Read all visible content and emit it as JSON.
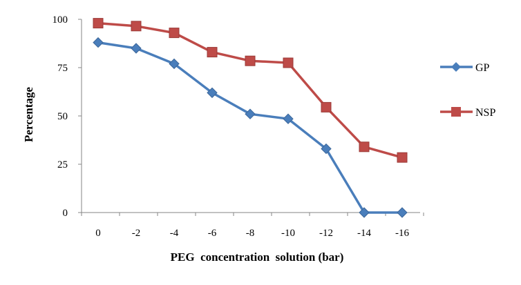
{
  "chart_data": {
    "type": "line",
    "title": "",
    "xlabel": "PEG  concentration  solution (bar)",
    "ylabel": "Percentage",
    "categories": [
      "0",
      "-2",
      "-4",
      "-6",
      "-8",
      "-10",
      "-12",
      "-14",
      "-16"
    ],
    "ylim": [
      0,
      100
    ],
    "yticks": [
      "0",
      "25",
      "50",
      "75",
      "100"
    ],
    "grid": false,
    "legend": "right",
    "series": [
      {
        "name": "GP",
        "color": "#4a7ebb",
        "marker": "diamond",
        "values": [
          88,
          85,
          77,
          62,
          51,
          48.5,
          33,
          0,
          0
        ]
      },
      {
        "name": "NSP",
        "color": "#be4b48",
        "marker": "square",
        "values": [
          98,
          96.5,
          93,
          83,
          78.5,
          77.5,
          54.5,
          34,
          28.5
        ]
      }
    ]
  }
}
